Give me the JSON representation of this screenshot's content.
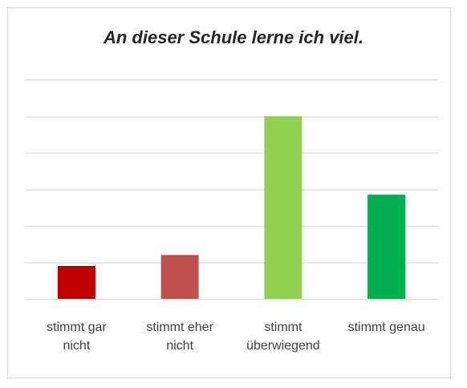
{
  "chart_data": {
    "type": "bar",
    "title": "An dieser Schule lerne ich viel.",
    "categories": [
      "stimmt gar nicht",
      "stimmt eher nicht",
      "stimmt überwiegend",
      "stimmt genau"
    ],
    "values": [
      0.9,
      1.2,
      5,
      2.85
    ],
    "colors": [
      "#c00000",
      "#c0504d",
      "#92d050",
      "#00b050"
    ],
    "ylim": [
      0,
      6
    ],
    "yticks": [
      0,
      1,
      2,
      3,
      4,
      5,
      6
    ],
    "grid": true
  }
}
